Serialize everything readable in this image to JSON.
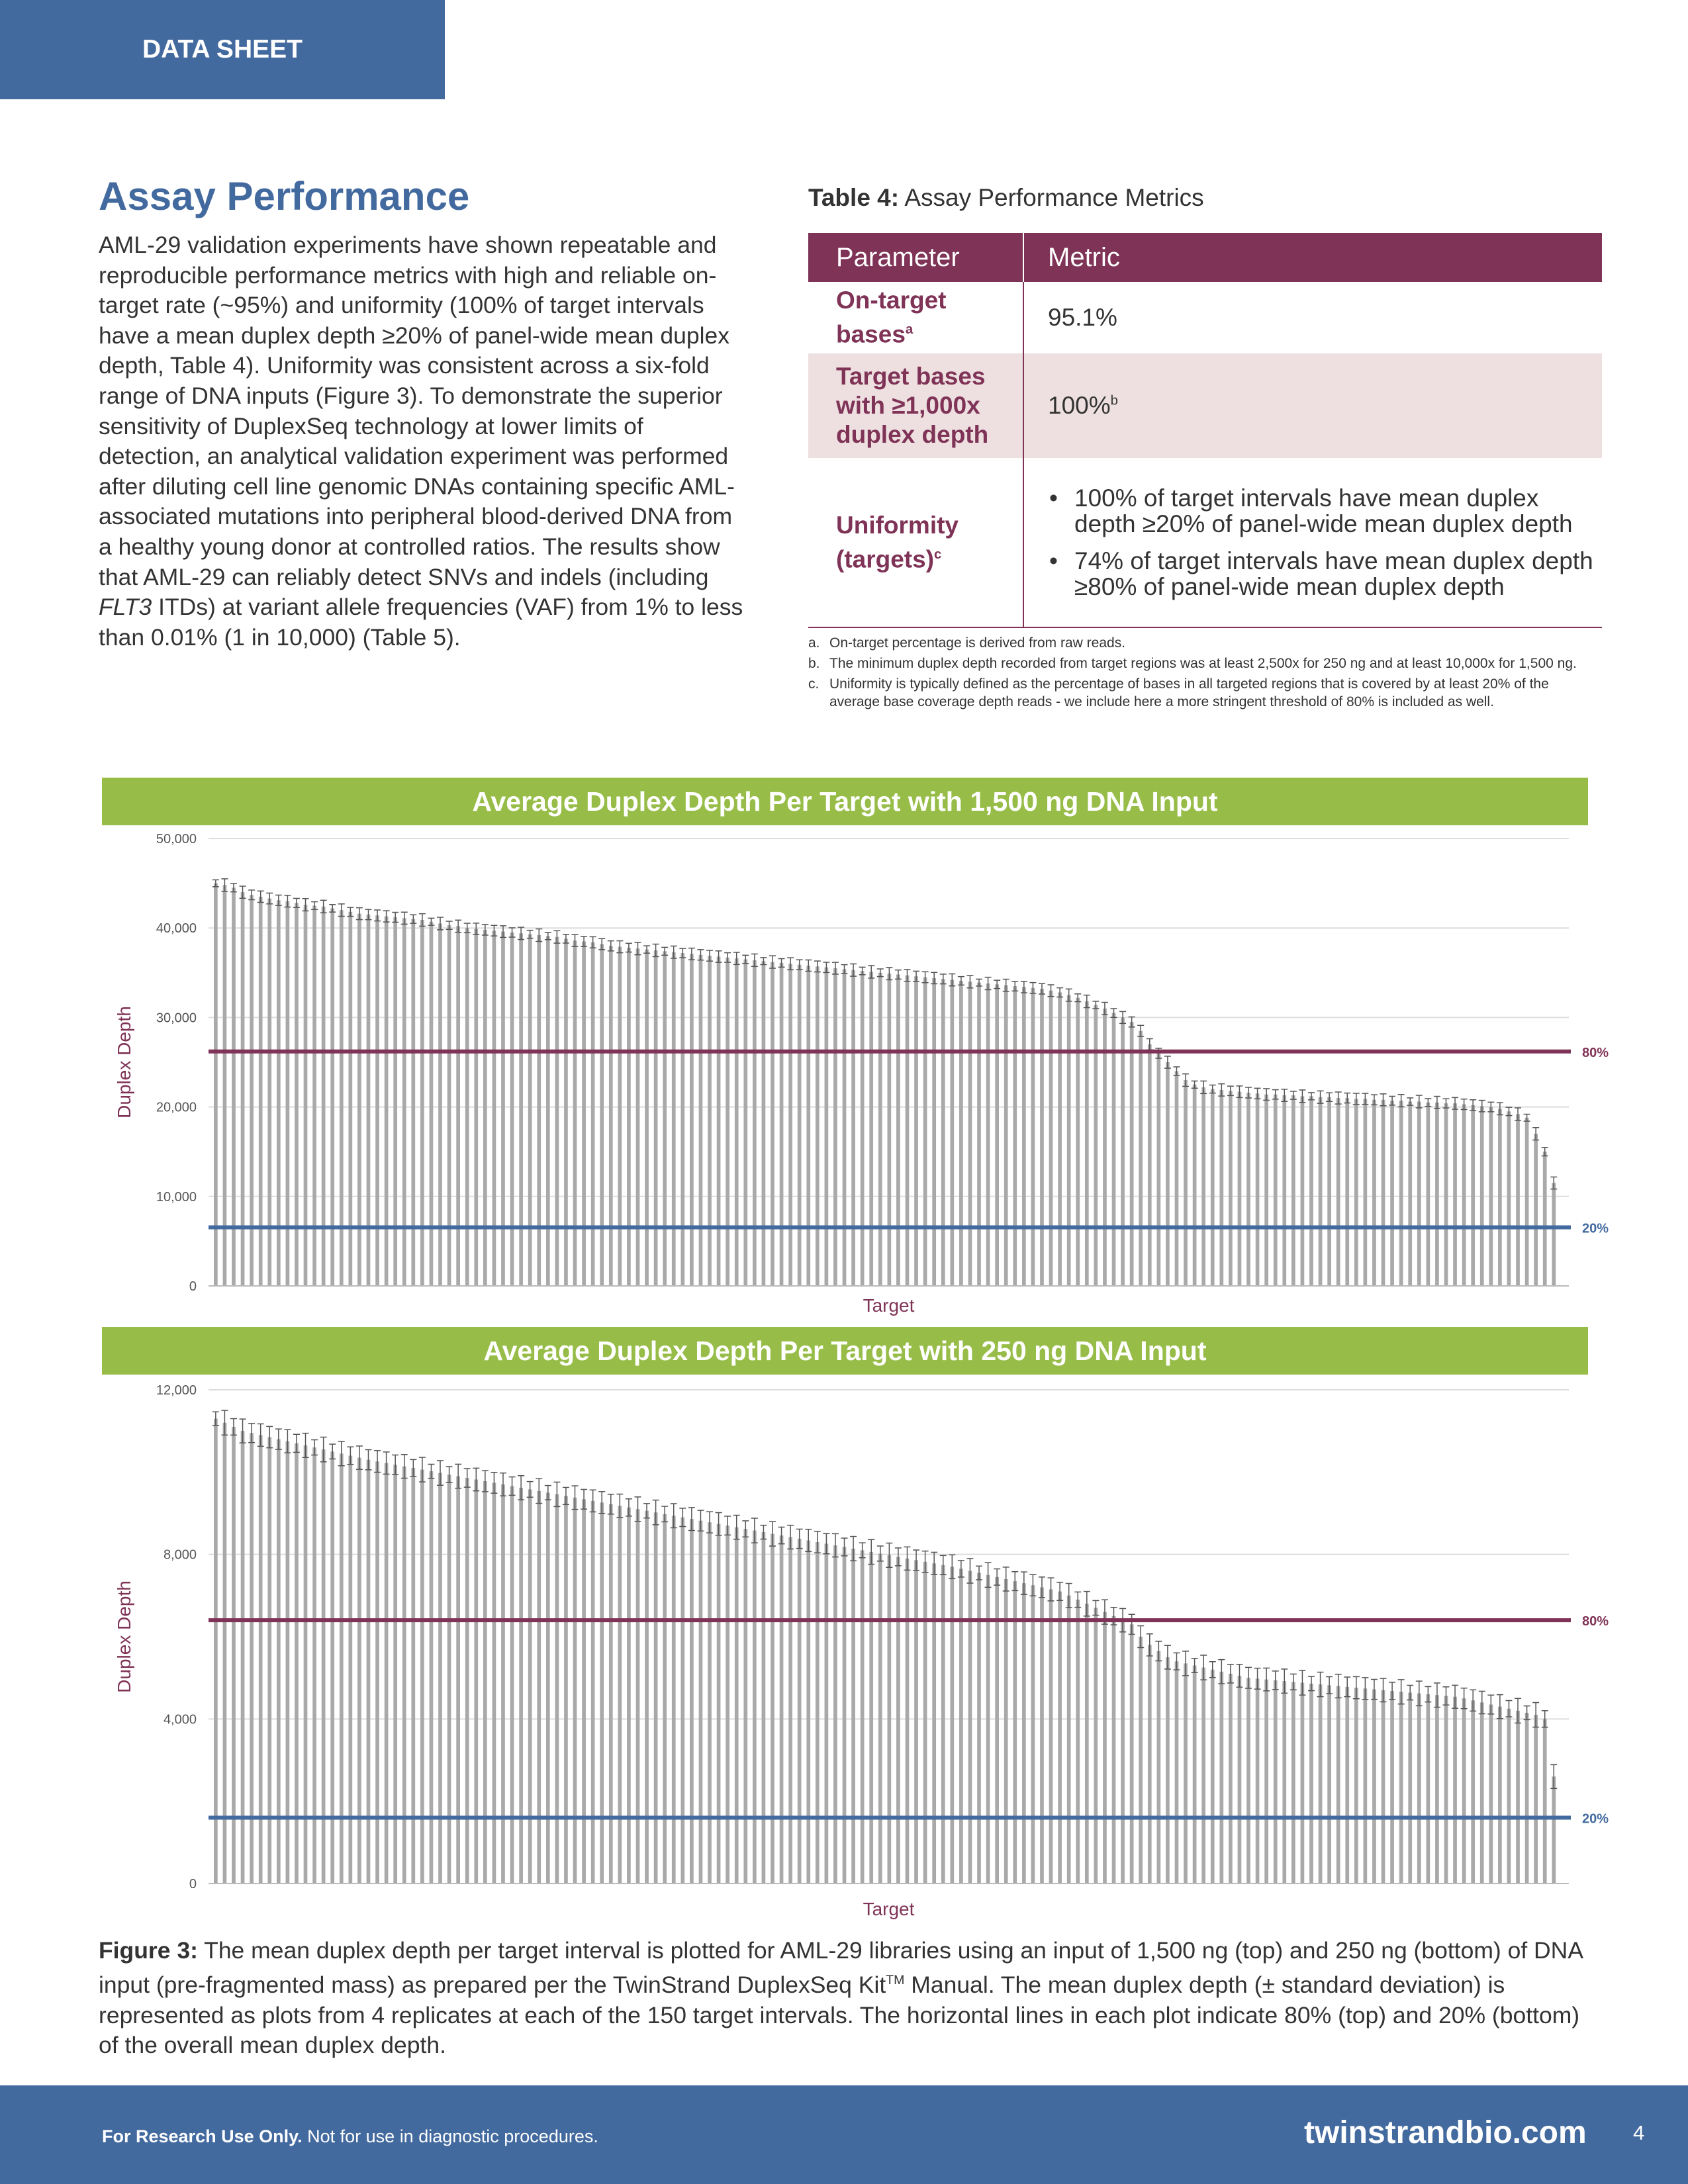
{
  "header": {
    "tag": "DATA SHEET"
  },
  "intro": {
    "heading": "Assay Performance",
    "p1": "AML-29 validation experiments have shown repeatable and reproducible performance metrics with high and reliable on-target rate (~95%) and uniformity (100% of target intervals have a mean duplex depth ≥20% of panel-wide mean duplex depth, Table 4). Uniformity was consistent across a six-fold range of DNA inputs (Figure 3). To demonstrate the superior sensitivity of DuplexSeq technology at lower limits of detection, an analytical validation experiment was performed after diluting cell line genomic DNAs containing specific AML-associated mutations into peripheral blood-derived DNA from a healthy young donor at controlled ratios. The results show that AML-29 can reliably detect SNVs and indels (including ",
    "p1_italic": "FLT3",
    "p1_end": " ITDs) at variant allele frequencies (VAF) from 1% to less than 0.01% (1 in 10,000) (Table 5)."
  },
  "table": {
    "title_bold": "Table 4:",
    "title_rest": " Assay Performance Metrics",
    "col_param": "Parameter",
    "col_metric": "Metric",
    "r1_param": "On-target bases",
    "r1_sup": "a",
    "r1_metric": "95.1%",
    "r2_param": "Target bases with ≥1,000x duplex depth",
    "r2_metric": "100%",
    "r2_sup": "b",
    "r3_param": "Uniformity (targets)",
    "r3_sup": "c",
    "r3_b1": "100% of target intervals have mean duplex depth ≥20% of panel-wide mean duplex depth",
    "r3_b2": "74% of target intervals have mean duplex depth ≥80% of panel-wide mean duplex depth"
  },
  "notes": [
    {
      "label": "a.",
      "text": "On-target percentage is derived from raw reads."
    },
    {
      "label": "b.",
      "text": "The minimum duplex depth recorded from target regions was at least 2,500x for 250 ng and at least 10,000x for 1,500 ng."
    },
    {
      "label": "c.",
      "text": "Uniformity is typically defined as the percentage of bases in all targeted regions that is covered by at least 20% of the average base coverage depth reads - we include here a more stringent threshold of 80% is included as well."
    }
  ],
  "chart_data": [
    {
      "type": "bar",
      "title": "Average Duplex Depth Per Target with 1,500 ng DNA Input",
      "xlabel": "Target",
      "ylabel": "Duplex Depth",
      "ylim": [
        0,
        50000
      ],
      "yticks": [
        "0",
        "10,000",
        "20,000",
        "30,000",
        "40,000",
        "50,000"
      ],
      "grid": true,
      "n_targets": 150,
      "values_sorted_desc": [
        45000,
        44800,
        44500,
        44000,
        43700,
        43500,
        43300,
        43100,
        43000,
        42800,
        42600,
        42500,
        42400,
        42200,
        42000,
        41800,
        41600,
        41500,
        41400,
        41300,
        41200,
        41100,
        41000,
        40900,
        40700,
        40500,
        40300,
        40200,
        40000,
        39900,
        39800,
        39700,
        39600,
        39500,
        39400,
        39300,
        39200,
        39100,
        39000,
        38800,
        38600,
        38500,
        38400,
        38200,
        38000,
        37900,
        37800,
        37700,
        37600,
        37500,
        37400,
        37300,
        37200,
        37100,
        37000,
        36900,
        36800,
        36700,
        36600,
        36500,
        36400,
        36300,
        36200,
        36100,
        36000,
        35900,
        35800,
        35700,
        35600,
        35500,
        35400,
        35300,
        35200,
        35100,
        35000,
        34900,
        34800,
        34700,
        34600,
        34500,
        34400,
        34300,
        34200,
        34100,
        34000,
        33900,
        33800,
        33700,
        33600,
        33500,
        33400,
        33300,
        33200,
        33000,
        32800,
        32500,
        32200,
        31800,
        31400,
        31000,
        30500,
        30000,
        29500,
        28500,
        27000,
        26000,
        25000,
        24000,
        23000,
        22500,
        22200,
        22000,
        21900,
        21800,
        21700,
        21600,
        21500,
        21400,
        21400,
        21300,
        21300,
        21200,
        21200,
        21100,
        21100,
        21000,
        21000,
        20900,
        20900,
        20800,
        20800,
        20700,
        20700,
        20600,
        20600,
        20500,
        20500,
        20400,
        20400,
        20300,
        20200,
        20100,
        20000,
        19800,
        19500,
        19200,
        18800,
        17000,
        15000,
        11500
      ],
      "error_sd_approx": 700,
      "reference_lines": [
        {
          "label": "80%",
          "value": 26200,
          "color": "#7f3356"
        },
        {
          "label": "20%",
          "value": 6550,
          "color": "#436a9f"
        }
      ]
    },
    {
      "type": "bar",
      "title": "Average Duplex Depth Per Target with 250 ng DNA Input",
      "xlabel": "Target",
      "ylabel": "Duplex Depth",
      "ylim": [
        0,
        12000
      ],
      "yticks": [
        "0",
        "4,000",
        "8,000",
        "12,000"
      ],
      "grid": true,
      "n_targets": 150,
      "values_sorted_desc": [
        11300,
        11200,
        11100,
        11000,
        10950,
        10900,
        10850,
        10800,
        10750,
        10700,
        10650,
        10600,
        10550,
        10500,
        10450,
        10400,
        10350,
        10300,
        10260,
        10220,
        10180,
        10140,
        10100,
        10060,
        10020,
        9980,
        9940,
        9900,
        9860,
        9820,
        9780,
        9740,
        9700,
        9660,
        9620,
        9580,
        9540,
        9500,
        9460,
        9420,
        9380,
        9340,
        9300,
        9260,
        9220,
        9180,
        9140,
        9100,
        9060,
        9020,
        8980,
        8940,
        8900,
        8860,
        8820,
        8780,
        8740,
        8700,
        8660,
        8620,
        8580,
        8540,
        8500,
        8460,
        8420,
        8380,
        8340,
        8300,
        8260,
        8220,
        8180,
        8140,
        8100,
        8060,
        8020,
        7980,
        7940,
        7900,
        7860,
        7820,
        7780,
        7740,
        7700,
        7650,
        7600,
        7550,
        7500,
        7450,
        7400,
        7350,
        7300,
        7250,
        7200,
        7150,
        7100,
        7000,
        6900,
        6800,
        6700,
        6600,
        6500,
        6400,
        6300,
        6000,
        5800,
        5650,
        5500,
        5400,
        5350,
        5300,
        5250,
        5200,
        5150,
        5100,
        5050,
        5000,
        4980,
        4960,
        4940,
        4920,
        4900,
        4880,
        4860,
        4840,
        4820,
        4800,
        4780,
        4760,
        4740,
        4720,
        4700,
        4680,
        4660,
        4640,
        4620,
        4600,
        4580,
        4560,
        4540,
        4500,
        4450,
        4400,
        4350,
        4300,
        4250,
        4200,
        4150,
        4100,
        4000,
        2600
      ],
      "error_sd_approx": 300,
      "reference_lines": [
        {
          "label": "80%",
          "value": 6400,
          "color": "#7f3356"
        },
        {
          "label": "20%",
          "value": 1600,
          "color": "#436a9f"
        }
      ]
    }
  ],
  "caption": {
    "bold": "Figure 3:",
    "t1": " The mean duplex depth per target interval is plotted for AML-29 libraries using an input of 1,500 ng (top) and 250 ng (bottom) of DNA input (pre-fragmented mass) as prepared per the TwinStrand DuplexSeq Kit",
    "tm": "TM",
    "t2": " Manual. The mean duplex depth (± standard deviation) is represented as plots from 4 replicates at each of the 150 target intervals. The horizontal lines in each plot indicate 80% (top) and 20% (bottom) of the overall mean duplex depth."
  },
  "footer": {
    "ruo_bold": "For Research Use Only.",
    "ruo_rest": " Not for use in diagnostic procedures.",
    "website": "twinstrandbio.com",
    "page": "4"
  }
}
